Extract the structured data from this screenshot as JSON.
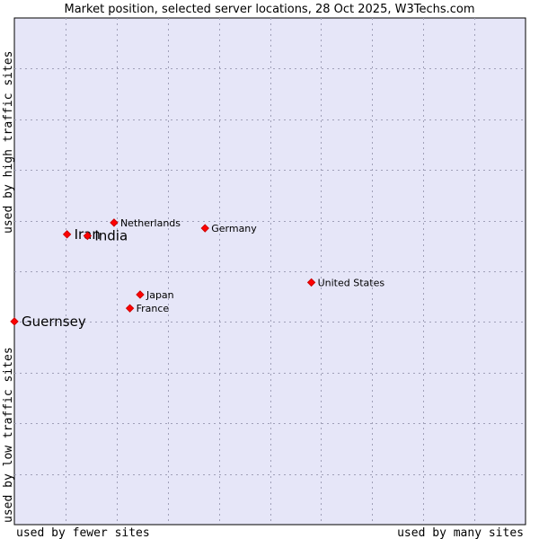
{
  "chart_data": {
    "type": "scatter",
    "title": "Market position, selected server locations, 28 Oct 2025, W3Techs.com",
    "xlabel_left": "used by fewer sites",
    "xlabel_right": "used by many sites",
    "ylabel_bottom": "used by low traffic sites",
    "ylabel_top": "used by high traffic sites",
    "xlim": [
      0,
      100
    ],
    "ylim": [
      0,
      100
    ],
    "grid": true,
    "points": [
      {
        "label": "Iran",
        "x": 10.3,
        "y": 57.3,
        "emphasis": true
      },
      {
        "label": "India",
        "x": 14.3,
        "y": 57.0,
        "emphasis": true
      },
      {
        "label": "Netherlands",
        "x": 19.5,
        "y": 59.6,
        "emphasis": false
      },
      {
        "label": "Germany",
        "x": 37.3,
        "y": 58.5,
        "emphasis": false
      },
      {
        "label": "United States",
        "x": 58.1,
        "y": 47.8,
        "emphasis": false
      },
      {
        "label": "Japan",
        "x": 24.6,
        "y": 45.4,
        "emphasis": false
      },
      {
        "label": "France",
        "x": 22.6,
        "y": 42.7,
        "emphasis": false
      },
      {
        "label": "Guernsey",
        "x": 0.0,
        "y": 40.1,
        "emphasis": true
      }
    ]
  },
  "colors": {
    "plot_bg": "#e6e6f8",
    "grid": "#a0a0b8",
    "marker": "#ff0000",
    "marker_stroke": "#cc0000",
    "axis": "#000000"
  }
}
